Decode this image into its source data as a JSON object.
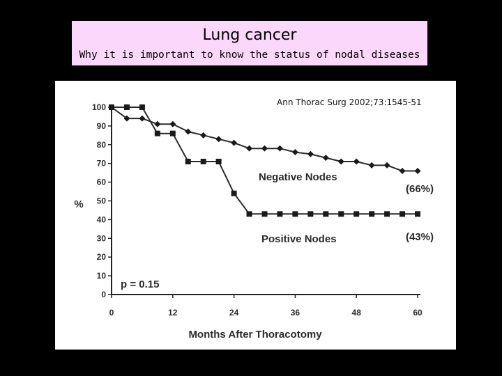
{
  "slide": {
    "title": "Lung cancer",
    "subtitle": "Why it is important to know the status of nodal diseases",
    "citation": "Ann Thorac Surg 2002;73:1545-51"
  },
  "chart_data": {
    "type": "line",
    "title": "",
    "xlabel": "Months After Thoracotomy",
    "ylabel": "%",
    "xlim": [
      0,
      60
    ],
    "ylim": [
      0,
      100
    ],
    "x_ticks": [
      0,
      12,
      24,
      36,
      48,
      60
    ],
    "x_tick_labels": [
      "0",
      "12",
      "24",
      "36",
      "48",
      "60"
    ],
    "y_ticks": [
      0,
      10,
      20,
      30,
      40,
      50,
      60,
      70,
      80,
      90,
      100
    ],
    "y_tick_labels": [
      "0",
      "10",
      "20",
      "30",
      "40",
      "50",
      "60",
      "70",
      "80",
      "90",
      "100"
    ],
    "series": [
      {
        "name": "Negative Nodes",
        "final_label": "(66%)",
        "marker": "diamond",
        "x": [
          0,
          3,
          6,
          9,
          12,
          15,
          18,
          21,
          24,
          27,
          30,
          33,
          36,
          39,
          42,
          45,
          48,
          51,
          54,
          57,
          60
        ],
        "y": [
          100,
          94,
          94,
          91,
          91,
          87,
          85,
          83,
          81,
          78,
          78,
          78,
          76,
          75,
          73,
          71,
          71,
          69,
          69,
          66,
          66
        ]
      },
      {
        "name": "Positive Nodes",
        "final_label": "(43%)",
        "marker": "square",
        "x": [
          0,
          3,
          6,
          9,
          12,
          15,
          18,
          21,
          24,
          27,
          30,
          33,
          36,
          39,
          42,
          45,
          48,
          51,
          54,
          57,
          60
        ],
        "y": [
          100,
          100,
          100,
          86,
          86,
          71,
          71,
          71,
          54,
          43,
          43,
          43,
          43,
          43,
          43,
          43,
          43,
          43,
          43,
          43,
          43
        ]
      }
    ],
    "annotations": [
      "p = 0.15"
    ],
    "grid": false,
    "legend": "inline labels"
  }
}
